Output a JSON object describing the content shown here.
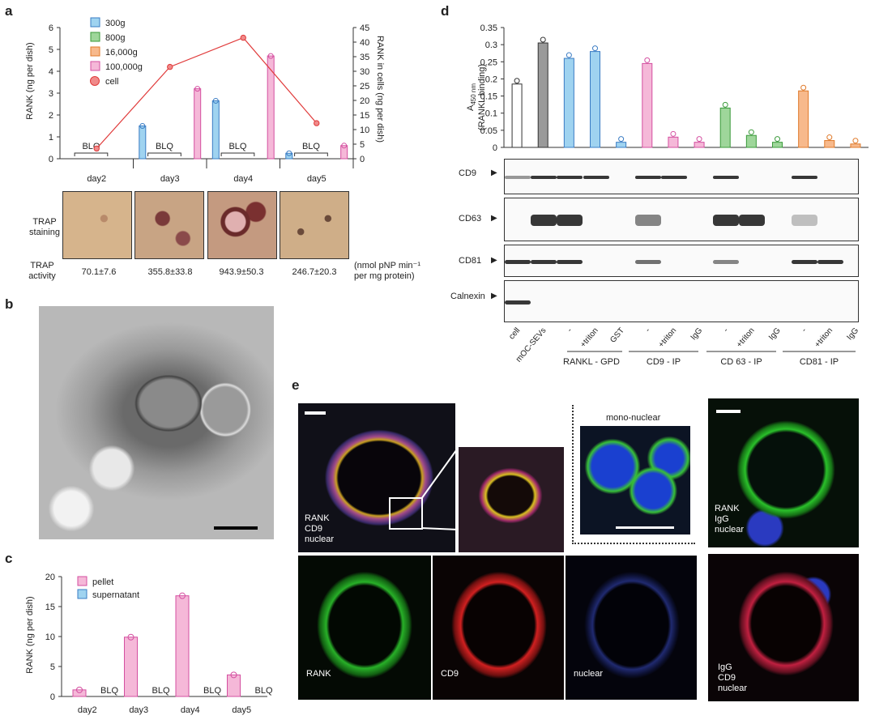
{
  "panel_letters": [
    "a",
    "b",
    "c",
    "d",
    "e"
  ],
  "colors": {
    "g300": "#9fd3f0",
    "g300_edge": "#3a7cc4",
    "g800": "#9ed69a",
    "g800_edge": "#3a9a3a",
    "g16k": "#f7b98c",
    "g16k_edge": "#e07a2a",
    "g100k": "#f5b8d8",
    "g100k_edge": "#d44fa0",
    "cell": "#e03a3a",
    "grey": "#9a9a9a",
    "dark": "#555555"
  },
  "panel_a": {
    "legend": [
      "300g",
      "800g",
      "16,000g",
      "100,000g",
      "cell"
    ],
    "blq": "BLQ",
    "trap_staining": [
      "TRAP",
      "staining"
    ],
    "trap_activity": [
      "TRAP",
      "activity"
    ],
    "activity_values": [
      "70.1±7.6",
      "355.8±33.8",
      "943.9±50.3",
      "246.7±20.3"
    ],
    "activity_unit": [
      "(nmol  pNP min⁻¹",
      "per mg protein)"
    ]
  },
  "panel_c": {
    "legend": [
      "pellet",
      "supernatant"
    ],
    "blq": "BLQ"
  },
  "panel_d": {
    "blots": [
      "CD9",
      "CD63",
      "CD81",
      "Calnexin"
    ],
    "lanes": [
      "cell",
      "mOC-SEVs",
      "-",
      "+triton",
      "GST",
      "-",
      "+triton",
      "IgG",
      "-",
      "+triton",
      "IgG",
      "-",
      "+triton",
      "IgG"
    ],
    "groups": [
      "RANKL - GPD",
      "CD9 - IP",
      "CD 63 - IP",
      "CD81 - IP"
    ]
  },
  "panel_e": {
    "mono": "mono-nuclear",
    "merge1": [
      "RANK",
      "CD9",
      "nuclear"
    ],
    "merge2": [
      "RANK",
      "IgG",
      "nuclear"
    ],
    "merge3": [
      "IgG",
      "CD9",
      "nuclear"
    ],
    "single": [
      "RANK",
      "CD9",
      "nuclear"
    ]
  },
  "chart_data": [
    {
      "type": "bar",
      "title": "",
      "categories": [
        "day2",
        "day3",
        "day4",
        "day5"
      ],
      "ylabel": "RANK (ng per dish)",
      "y2label": "RANK in cells (ng per dish)",
      "ylim": [
        0,
        6
      ],
      "y2lim": [
        0,
        45
      ],
      "yticks": [
        0,
        1,
        2,
        3,
        4,
        5,
        6
      ],
      "y2ticks": [
        0,
        5,
        10,
        15,
        20,
        25,
        30,
        35,
        40,
        45
      ],
      "series": [
        {
          "name": "300g",
          "values": [
            null,
            1.5,
            2.65,
            0.25
          ]
        },
        {
          "name": "800g",
          "values": [
            null,
            null,
            null,
            null
          ]
        },
        {
          "name": "16,000g",
          "values": [
            null,
            null,
            null,
            null
          ]
        },
        {
          "name": "100,000g",
          "values": [
            null,
            3.2,
            4.7,
            0.6
          ]
        },
        {
          "name": "cell",
          "axis": "right",
          "type": "line",
          "values": [
            3.5,
            31.5,
            41.5,
            12.2
          ]
        }
      ]
    },
    {
      "type": "bar",
      "title": "",
      "categories": [
        "day2",
        "day3",
        "day4",
        "day5"
      ],
      "ylabel": "RANK (ng per dish)",
      "ylim": [
        0,
        20
      ],
      "yticks": [
        0,
        5,
        10,
        15,
        20
      ],
      "series": [
        {
          "name": "pellet",
          "values": [
            1.1,
            9.9,
            16.8,
            3.6
          ]
        },
        {
          "name": "supernatant",
          "values": [
            null,
            null,
            null,
            null
          ]
        }
      ]
    },
    {
      "type": "bar",
      "title": "",
      "categories": [
        "cell",
        "mOC-SEVs",
        "-",
        "+triton",
        "GST",
        "-",
        "+triton",
        "IgG",
        "-",
        "+triton",
        "IgG",
        "-",
        "+triton",
        "IgG"
      ],
      "ylabel": "A450 nm (RANKL binding)",
      "ylim": [
        0,
        0.35
      ],
      "yticks": [
        "0",
        "0.05",
        "0.1",
        "0.15",
        "0.2",
        "0.25",
        "0.3",
        "0.35"
      ],
      "values": [
        0.185,
        0.305,
        0.26,
        0.28,
        0.015,
        0.245,
        0.03,
        0.015,
        0.115,
        0.035,
        0.015,
        0.165,
        0.02,
        0.01
      ]
    }
  ]
}
